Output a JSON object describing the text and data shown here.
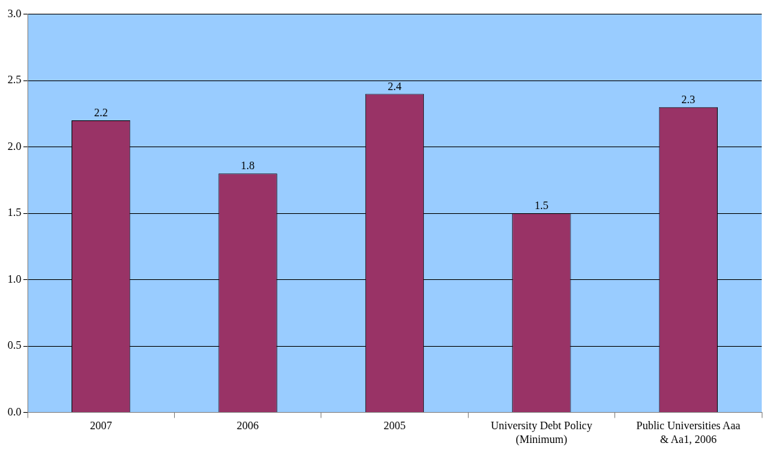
{
  "chart_data": {
    "type": "bar",
    "categories": [
      "2007",
      "2006",
      "2005",
      "University Debt Policy (Minimum)",
      "Public Universities Aaa & Aa1, 2006"
    ],
    "values": [
      2.2,
      1.8,
      2.4,
      1.5,
      2.3
    ],
    "color": "#993366",
    "ylim": [
      0,
      3
    ],
    "yticks": [
      {
        "value": 0,
        "label": "0.0"
      },
      {
        "value": 0.5,
        "label": "0.5"
      },
      {
        "value": 1,
        "label": "1.0"
      },
      {
        "value": 1.5,
        "label": "1.5"
      },
      {
        "value": 2,
        "label": "2.0"
      },
      {
        "value": 2.5,
        "label": "2.5"
      },
      {
        "value": 3,
        "label": "3.0"
      }
    ],
    "grid": "y",
    "data_labels": true
  }
}
